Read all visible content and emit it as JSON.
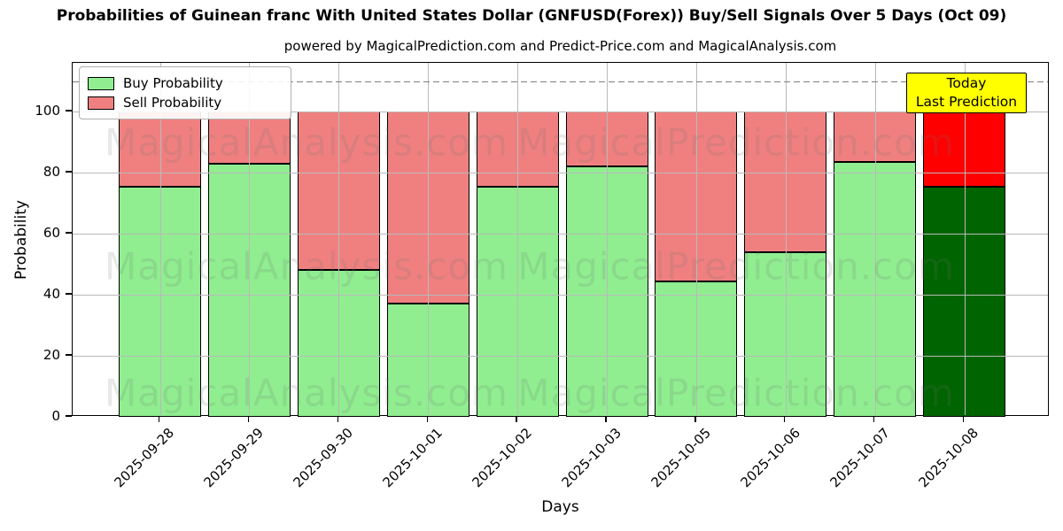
{
  "chart_data": {
    "type": "bar",
    "stacked": true,
    "title": "Probabilities of Guinean franc With United States Dollar (GNFUSD(Forex)) Buy/Sell Signals Over 5 Days (Oct 09)",
    "subtitle": "powered by MagicalPrediction.com and Predict-Price.com and MagicalAnalysis.com",
    "xlabel": "Days",
    "ylabel": "Probability",
    "categories": [
      "2025-09-28",
      "2025-09-29",
      "2025-09-30",
      "2025-10-01",
      "2025-10-02",
      "2025-10-03",
      "2025-10-05",
      "2025-10-06",
      "2025-10-07",
      "2025-10-08"
    ],
    "series": [
      {
        "name": "Buy Probability",
        "color": "#90EE90",
        "values": [
          75.5,
          83,
          48,
          37,
          75.5,
          82,
          44.5,
          54,
          83.5,
          75.5
        ]
      },
      {
        "name": "Sell Probability",
        "color": "#F08080",
        "values": [
          24.5,
          17,
          52,
          63,
          24.5,
          18,
          55.5,
          46,
          16.5,
          24.5
        ]
      }
    ],
    "today_bar": {
      "category": "2025-10-08",
      "index": 9,
      "buy_color": "#006400",
      "sell_color": "#FF0000"
    },
    "annotation": {
      "line1": "Today",
      "line2": "Last Prediction",
      "bg_color": "#FFFF00"
    },
    "dashed_line_y": 110,
    "ylim": [
      0,
      116
    ],
    "yticks": [
      0,
      20,
      40,
      60,
      80,
      100
    ],
    "grid": true,
    "legend_position": "upper left",
    "watermarks": [
      "MagicalAnalysis.com",
      "MagicalPrediction.com"
    ],
    "colors": {
      "buy": "#90EE90",
      "sell": "#F08080",
      "today_buy": "#006400",
      "today_sell": "#FF0000",
      "grid": "#b9b9b9",
      "dashed_line": "#7f7f7f",
      "annotation_bg": "#FFFF00"
    }
  }
}
